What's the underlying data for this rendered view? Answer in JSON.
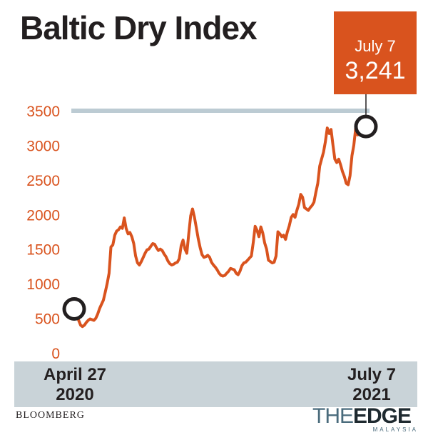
{
  "chart_data": {
    "type": "line",
    "title": "Baltic Dry Index",
    "ylim": [
      0,
      3500
    ],
    "yticks": [
      0,
      500,
      1000,
      1500,
      2000,
      2500,
      3000,
      3500
    ],
    "x_start_label": [
      "April 27",
      "2020"
    ],
    "x_end_label": [
      "July 7",
      "2021"
    ],
    "callout": {
      "date": "July 7",
      "value": "3,241"
    },
    "source": "BLOOMBERG",
    "series": [
      {
        "color": "#d9531e",
        "values": [
          635,
          560,
          470,
          400,
          380,
          400,
          440,
          470,
          490,
          480,
          470,
          500,
          560,
          640,
          700,
          760,
          880,
          1000,
          1150,
          1530,
          1560,
          1700,
          1760,
          1780,
          1820,
          1800,
          1950,
          1800,
          1720,
          1740,
          1680,
          1580,
          1400,
          1300,
          1270,
          1320,
          1380,
          1440,
          1490,
          1500,
          1540,
          1580,
          1570,
          1520,
          1480,
          1500,
          1480,
          1430,
          1390,
          1330,
          1290,
          1270,
          1280,
          1300,
          1310,
          1360,
          1550,
          1630,
          1500,
          1440,
          1720,
          1980,
          2080,
          1960,
          1810,
          1650,
          1520,
          1420,
          1380,
          1390,
          1410,
          1380,
          1310,
          1270,
          1240,
          1200,
          1150,
          1120,
          1110,
          1120,
          1150,
          1180,
          1220,
          1210,
          1200,
          1150,
          1130,
          1180,
          1260,
          1300,
          1310,
          1340,
          1370,
          1400,
          1600,
          1830,
          1770,
          1680,
          1820,
          1730,
          1590,
          1500,
          1340,
          1320,
          1300,
          1310,
          1400,
          1750,
          1720,
          1680,
          1700,
          1640,
          1750,
          1840,
          1960,
          2000,
          1960,
          2060,
          2150,
          2290,
          2250,
          2100,
          2080,
          2060,
          2100,
          2130,
          2180,
          2320,
          2450,
          2700,
          2800,
          2900,
          3050,
          3250,
          3170,
          3230,
          3000,
          2800,
          2750,
          2800,
          2720,
          2620,
          2550,
          2450,
          2430,
          2560,
          2850,
          3000,
          3250,
          3150,
          3241,
          3400,
          3300,
          3241
        ]
      }
    ],
    "reference_line": {
      "value": 3500,
      "color": "#bccbd3"
    }
  },
  "colors": {
    "accent": "#d9531e",
    "axis_band": "#c9d3d8",
    "text": "#231f20"
  },
  "logo": {
    "main_a": "THE",
    "main_b": "EDGE",
    "sub": "MALAYSIA"
  }
}
